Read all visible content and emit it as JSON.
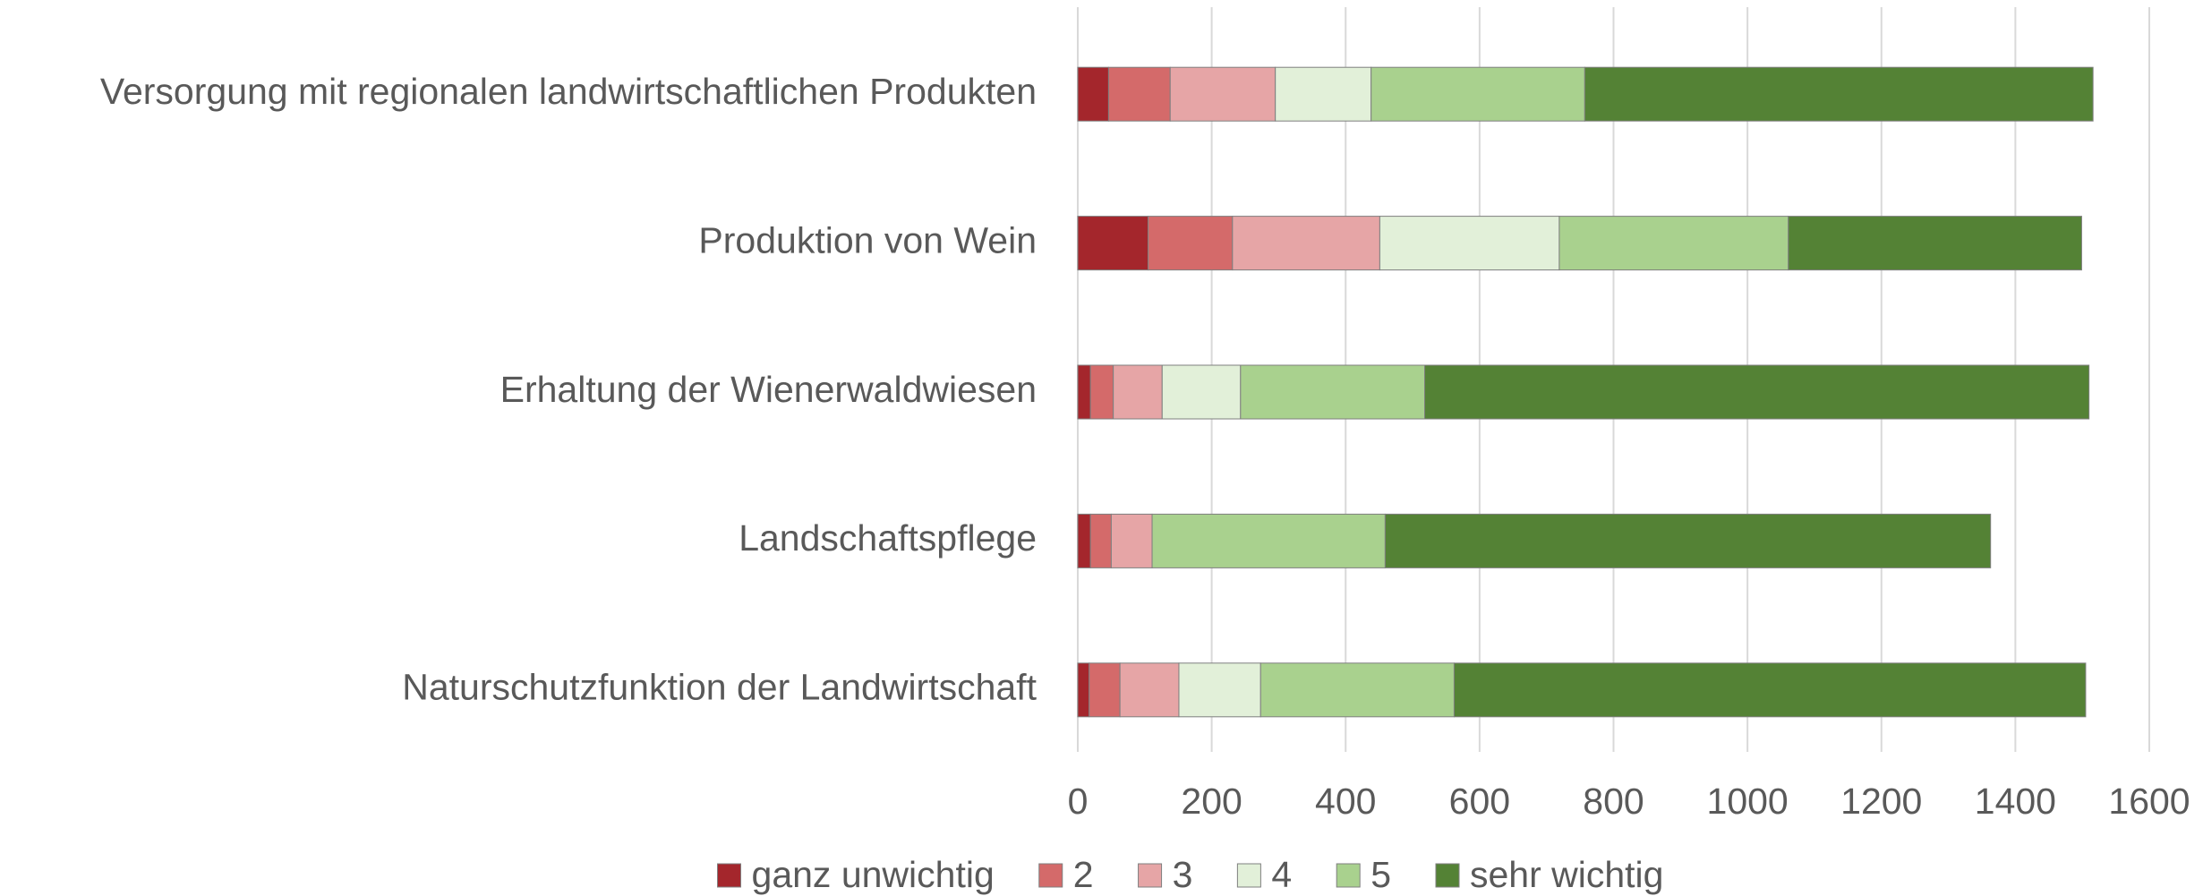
{
  "chart_data": {
    "type": "stacked_barh",
    "categories": [
      "Versorgung mit regionalen landwirtschaftlichen Produkten",
      "Produktion von Wein",
      "Erhaltung der Wienerwaldwiesen",
      "Landschaftspflege",
      "Naturschutzfunktion der Landwirtschaft"
    ],
    "series": [
      {
        "name": "ganz unwichtig",
        "color": "#a4262c",
        "values": [
          46,
          105,
          19,
          19,
          17
        ]
      },
      {
        "name": "2",
        "color": "#d46a6a",
        "values": [
          92,
          126,
          34,
          31,
          46
        ]
      },
      {
        "name": "3",
        "color": "#e6a5a6",
        "values": [
          157,
          220,
          73,
          61,
          88
        ]
      },
      {
        "name": "4",
        "color": "#e2f0d9",
        "values": [
          143,
          268,
          117,
          0,
          122
        ]
      },
      {
        "name": "5",
        "color": "#a9d18e",
        "values": [
          319,
          342,
          275,
          348,
          289
        ]
      },
      {
        "name": "sehr wichtig",
        "color": "#548235",
        "values": [
          759,
          438,
          992,
          904,
          943
        ]
      }
    ],
    "xlim": [
      0,
      1600
    ],
    "xticks": [
      0,
      200,
      400,
      600,
      800,
      1000,
      1200,
      1400,
      1600
    ],
    "grid": true,
    "legend": "bottom"
  }
}
